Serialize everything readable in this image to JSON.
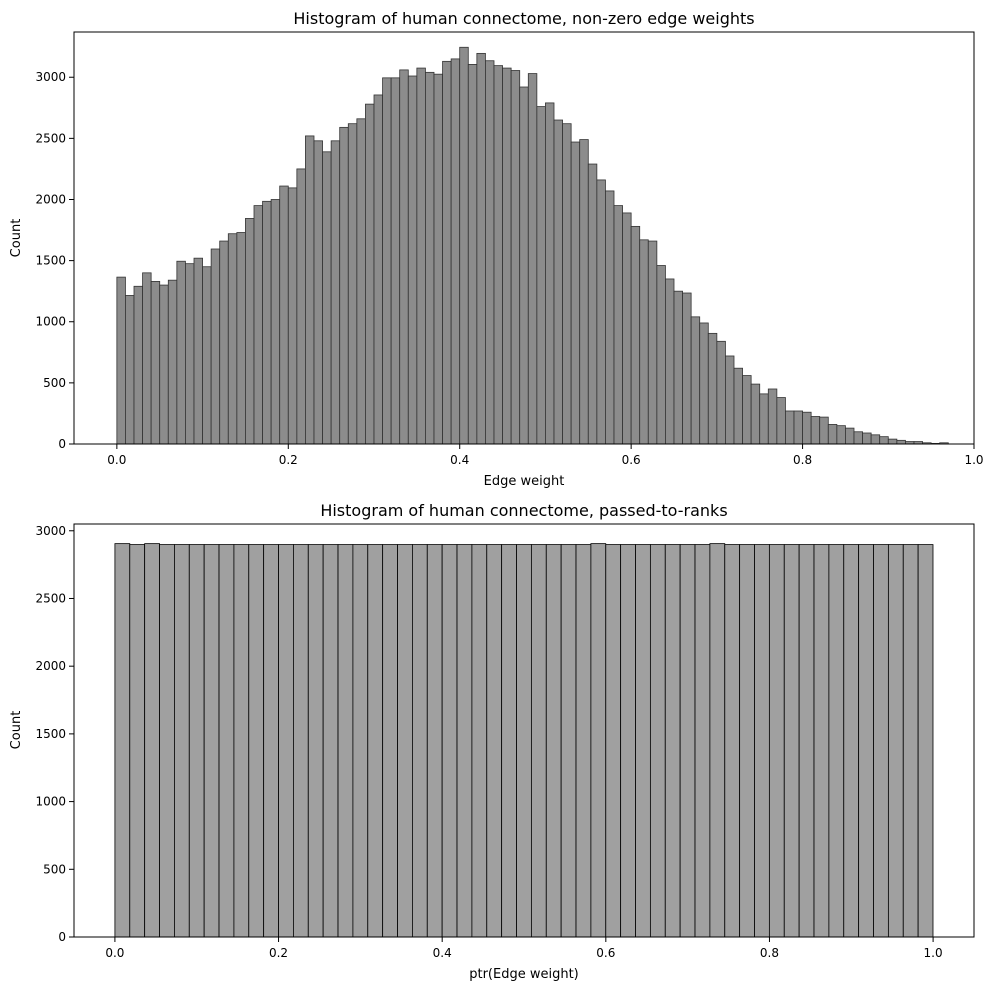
{
  "chart_data": [
    {
      "type": "bar",
      "title": "Histogram of human connectome, non-zero edge weights",
      "xlabel": "Edge weight",
      "ylabel": "Count",
      "xlim": [
        -0.05,
        1.0
      ],
      "ylim": [
        0,
        3370
      ],
      "xticks": [
        0.0,
        0.2,
        0.4,
        0.6,
        0.8,
        1.0
      ],
      "xtick_labels": [
        "0.0",
        "0.2",
        "0.4",
        "0.6",
        "0.8",
        "1.0"
      ],
      "yticks": [
        0,
        500,
        1000,
        1500,
        2000,
        2500,
        3000
      ],
      "ytick_labels": [
        "0",
        "500",
        "1000",
        "1500",
        "2000",
        "2500",
        "3000"
      ],
      "bin_start": 0.0,
      "bin_width": 0.01,
      "bar_color": "#8c8c8c",
      "edge_color": "#333333",
      "values": [
        1365,
        1215,
        1290,
        1400,
        1330,
        1300,
        1340,
        1495,
        1475,
        1520,
        1450,
        1595,
        1660,
        1720,
        1730,
        1845,
        1950,
        1985,
        2000,
        2110,
        2095,
        2250,
        2520,
        2480,
        2390,
        2480,
        2590,
        2620,
        2660,
        2780,
        2855,
        2995,
        2995,
        3060,
        3010,
        3075,
        3040,
        3025,
        3130,
        3150,
        3245,
        3105,
        3195,
        3135,
        3095,
        3075,
        3055,
        2920,
        3030,
        2760,
        2790,
        2650,
        2620,
        2470,
        2490,
        2290,
        2160,
        2070,
        1950,
        1890,
        1780,
        1670,
        1660,
        1460,
        1350,
        1250,
        1235,
        1040,
        990,
        905,
        840,
        720,
        620,
        560,
        490,
        410,
        450,
        380,
        270,
        270,
        260,
        225,
        220,
        160,
        150,
        130,
        100,
        90,
        75,
        60,
        40,
        30,
        20,
        20,
        10,
        5,
        10,
        0
      ]
    },
    {
      "type": "bar",
      "title": "Histogram of human connectome, passed-to-ranks",
      "xlabel": "ptr(Edge weight)",
      "ylabel": "Count",
      "xlim": [
        -0.05,
        1.05
      ],
      "ylim": [
        0,
        3050
      ],
      "xticks": [
        0.0,
        0.2,
        0.4,
        0.6,
        0.8,
        1.0
      ],
      "xtick_labels": [
        "0.0",
        "0.2",
        "0.4",
        "0.6",
        "0.8",
        "1.0"
      ],
      "yticks": [
        0,
        500,
        1000,
        1500,
        2000,
        2500,
        3000
      ],
      "ytick_labels": [
        "0",
        "500",
        "1000",
        "1500",
        "2000",
        "2500",
        "3000"
      ],
      "bin_start": 0.0,
      "bin_width": 0.01818,
      "bar_color": "#a0a0a0",
      "edge_color": "#000000",
      "values": [
        2905,
        2898,
        2905,
        2898,
        2898,
        2898,
        2898,
        2898,
        2898,
        2898,
        2898,
        2898,
        2898,
        2898,
        2898,
        2898,
        2898,
        2898,
        2898,
        2898,
        2898,
        2898,
        2898,
        2898,
        2898,
        2898,
        2898,
        2898,
        2898,
        2898,
        2898,
        2898,
        2905,
        2898,
        2898,
        2898,
        2898,
        2898,
        2898,
        2898,
        2905,
        2898,
        2898,
        2898,
        2898,
        2898,
        2898,
        2898,
        2898,
        2898,
        2898,
        2898,
        2898,
        2898,
        2898
      ]
    }
  ]
}
